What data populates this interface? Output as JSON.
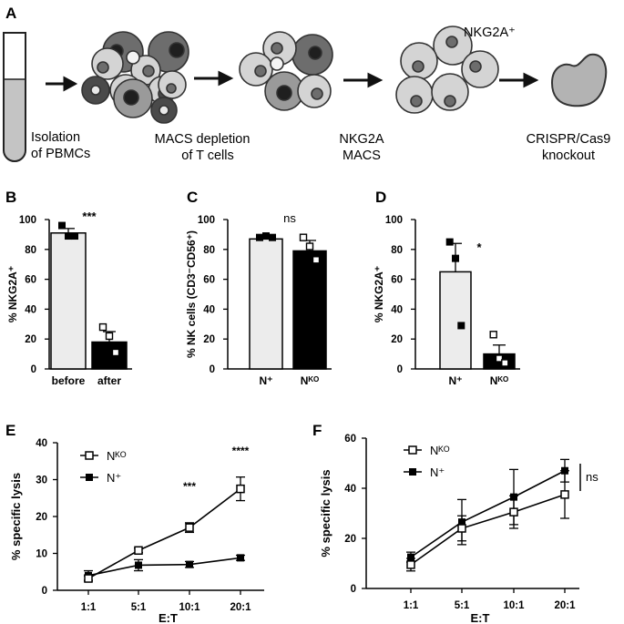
{
  "panel_letters": {
    "A": "A",
    "B": "B",
    "C": "C",
    "D": "D",
    "E": "E",
    "F": "F"
  },
  "workflow": {
    "step1": [
      "Isolation",
      "of PBMCs"
    ],
    "step2": [
      "MACS depletion",
      "of  T cells"
    ],
    "step3": [
      "NKG2A",
      "MACS"
    ],
    "step4": [
      "CRISPR/Cas9",
      "knockout"
    ],
    "cluster_label": "NKG2A⁺"
  },
  "chart_data": [
    {
      "panel": "B",
      "type": "bar",
      "ylabel": "% NKG2A⁺",
      "ylim": [
        0,
        100
      ],
      "yticks": [
        "0",
        "20",
        "40",
        "60",
        "80",
        "100"
      ],
      "categories": [
        "before",
        "after"
      ],
      "values": [
        91,
        18
      ],
      "errors": [
        3,
        7
      ],
      "points": [
        [
          96,
          89,
          89
        ],
        [
          28,
          22,
          11
        ]
      ],
      "significance": "***"
    },
    {
      "panel": "C",
      "type": "bar",
      "ylabel": "% NK cells (CD3⁻CD56⁺)",
      "ylim": [
        0,
        100
      ],
      "yticks": [
        "0",
        "20",
        "40",
        "60",
        "80",
        "100"
      ],
      "categories": [
        "N⁺",
        "Nᴷᴼ"
      ],
      "values": [
        87,
        79
      ],
      "errors": [
        2,
        7
      ],
      "points": [
        [
          88,
          89,
          88
        ],
        [
          88,
          82,
          73
        ]
      ],
      "significance": "ns"
    },
    {
      "panel": "D",
      "type": "bar",
      "ylabel": "% NKG2A⁺",
      "ylim": [
        0,
        100
      ],
      "yticks": [
        "0",
        "20",
        "40",
        "60",
        "80",
        "100"
      ],
      "categories": [
        "N⁺",
        "Nᴷᴼ"
      ],
      "values": [
        65,
        10
      ],
      "errors": [
        19,
        6
      ],
      "points": [
        [
          85,
          74,
          29
        ],
        [
          23,
          7,
          4
        ]
      ],
      "significance": "*"
    },
    {
      "panel": "E",
      "type": "line",
      "xlabel": "E:T",
      "ylabel": "% specific lysis",
      "ylim": [
        0,
        40
      ],
      "yticks": [
        "0",
        "10",
        "20",
        "30",
        "40"
      ],
      "categories": [
        "1:1",
        "5:1",
        "10:1",
        "20:1"
      ],
      "series": [
        {
          "name": "Nᴷᴼ",
          "marker": "open-square",
          "values": [
            3.2,
            10.8,
            17.0,
            27.5
          ],
          "errors": [
            0.7,
            0.6,
            1.3,
            3.2
          ]
        },
        {
          "name": "N⁺",
          "marker": "filled-square",
          "values": [
            4.0,
            6.8,
            7.0,
            8.8
          ],
          "errors": [
            1.3,
            1.5,
            0.8,
            0.7
          ]
        }
      ],
      "significance": [
        "",
        "",
        "***",
        "****"
      ]
    },
    {
      "panel": "F",
      "type": "line",
      "xlabel": "E:T",
      "ylabel": "% specific lysis",
      "ylim": [
        0,
        60
      ],
      "yticks": [
        "0",
        "20",
        "40",
        "60"
      ],
      "categories": [
        "1:1",
        "5:1",
        "10:1",
        "20:1"
      ],
      "series": [
        {
          "name": "Nᴷᴼ",
          "marker": "open-square",
          "values": [
            9.5,
            24.0,
            30.5,
            37.5
          ],
          "errors": [
            2.5,
            5.0,
            6.5,
            9.5
          ]
        },
        {
          "name": "N⁺",
          "marker": "filled-square",
          "values": [
            12.5,
            26.5,
            36.5,
            47.0
          ],
          "errors": [
            2.0,
            9.0,
            11.0,
            4.5
          ]
        }
      ],
      "significance": "ns"
    }
  ]
}
